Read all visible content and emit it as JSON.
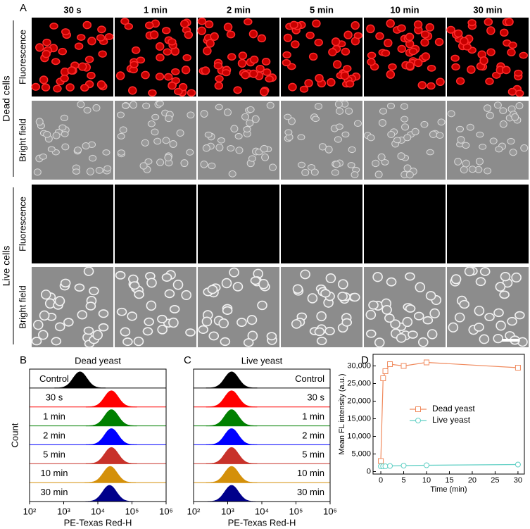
{
  "panel_a": {
    "label": "A",
    "columns": [
      "30 s",
      "1 min",
      "2 min",
      "5 min",
      "10 min",
      "30 min"
    ],
    "groups": [
      {
        "name": "Dead cells",
        "rows": [
          "Fluorescence",
          "Bright field"
        ]
      },
      {
        "name": "Live cells",
        "rows": [
          "Fluorescence",
          "Bright field"
        ]
      }
    ]
  },
  "chart_data": [
    {
      "type": "ridgeline",
      "label": "B",
      "title": "Dead yeast",
      "xlabel": "PE-Texas Red-H",
      "ylabel": "Count",
      "xscale": "log",
      "xlim": [
        100,
        1000000
      ],
      "xticks": [
        {
          "value": 100,
          "label": "10²"
        },
        {
          "value": 1000,
          "label": "10³"
        },
        {
          "value": 10000,
          "label": "10⁴"
        },
        {
          "value": 100000,
          "label": "10⁵"
        },
        {
          "value": 1000000,
          "label": "10⁶"
        }
      ],
      "categories": [
        "Control",
        "30 s",
        "1 min",
        "2 min",
        "5 min",
        "10 min",
        "30 min"
      ],
      "colors": [
        "#000000",
        "#ff0000",
        "#008000",
        "#0000ff",
        "#c8322a",
        "#d4900a",
        "#00008b"
      ],
      "values": [
        3000,
        25000,
        25000,
        25000,
        25000,
        23000,
        22000
      ]
    },
    {
      "type": "ridgeline",
      "label": "C",
      "title": "Live yeast",
      "xlabel": "PE-Texas Red-H",
      "xscale": "log",
      "xlim": [
        100,
        1000000
      ],
      "xticks": [
        {
          "value": 100,
          "label": "10²"
        },
        {
          "value": 1000,
          "label": "10³"
        },
        {
          "value": 10000,
          "label": "10⁴"
        },
        {
          "value": 100000,
          "label": "10⁵"
        },
        {
          "value": 1000000,
          "label": "10⁶"
        }
      ],
      "categories": [
        "Control",
        "30 s",
        "1 min",
        "2 min",
        "5 min",
        "10 min",
        "30 min"
      ],
      "colors": [
        "#000000",
        "#ff0000",
        "#008000",
        "#0000ff",
        "#c8322a",
        "#d4900a",
        "#00008b"
      ],
      "values": [
        1300,
        1300,
        1300,
        1300,
        1300,
        1300,
        1300
      ]
    },
    {
      "type": "line",
      "label": "D",
      "xlabel": "Time (min)",
      "ylabel": "Mean FL intensity (a.u.)",
      "x": [
        0,
        0.5,
        1,
        2,
        5,
        10,
        30
      ],
      "series": [
        {
          "name": "Dead yeast",
          "color": "#f08a5d",
          "marker": "square",
          "values": [
            3000,
            26500,
            28500,
            30500,
            30000,
            31000,
            29500
          ]
        },
        {
          "name": "Live yeast",
          "color": "#5fcfc4",
          "marker": "circle",
          "values": [
            1500,
            1500,
            1500,
            1600,
            1700,
            1800,
            2000
          ]
        }
      ],
      "xlim": [
        -1.7,
        31.4
      ],
      "ylim": [
        -700,
        33300
      ],
      "xticks": [
        0,
        5,
        10,
        15,
        20,
        25,
        30
      ],
      "yticks": [
        0,
        {
          "value": 5000,
          "label": "5,000"
        },
        {
          "value": 10000,
          "label": "10,000"
        },
        {
          "value": 15000,
          "label": "15,000"
        },
        {
          "value": 20000,
          "label": "20,000"
        },
        {
          "value": 25000,
          "label": "25,000"
        },
        {
          "value": 30000,
          "label": "30,000"
        }
      ],
      "legend": "upper-center"
    }
  ]
}
